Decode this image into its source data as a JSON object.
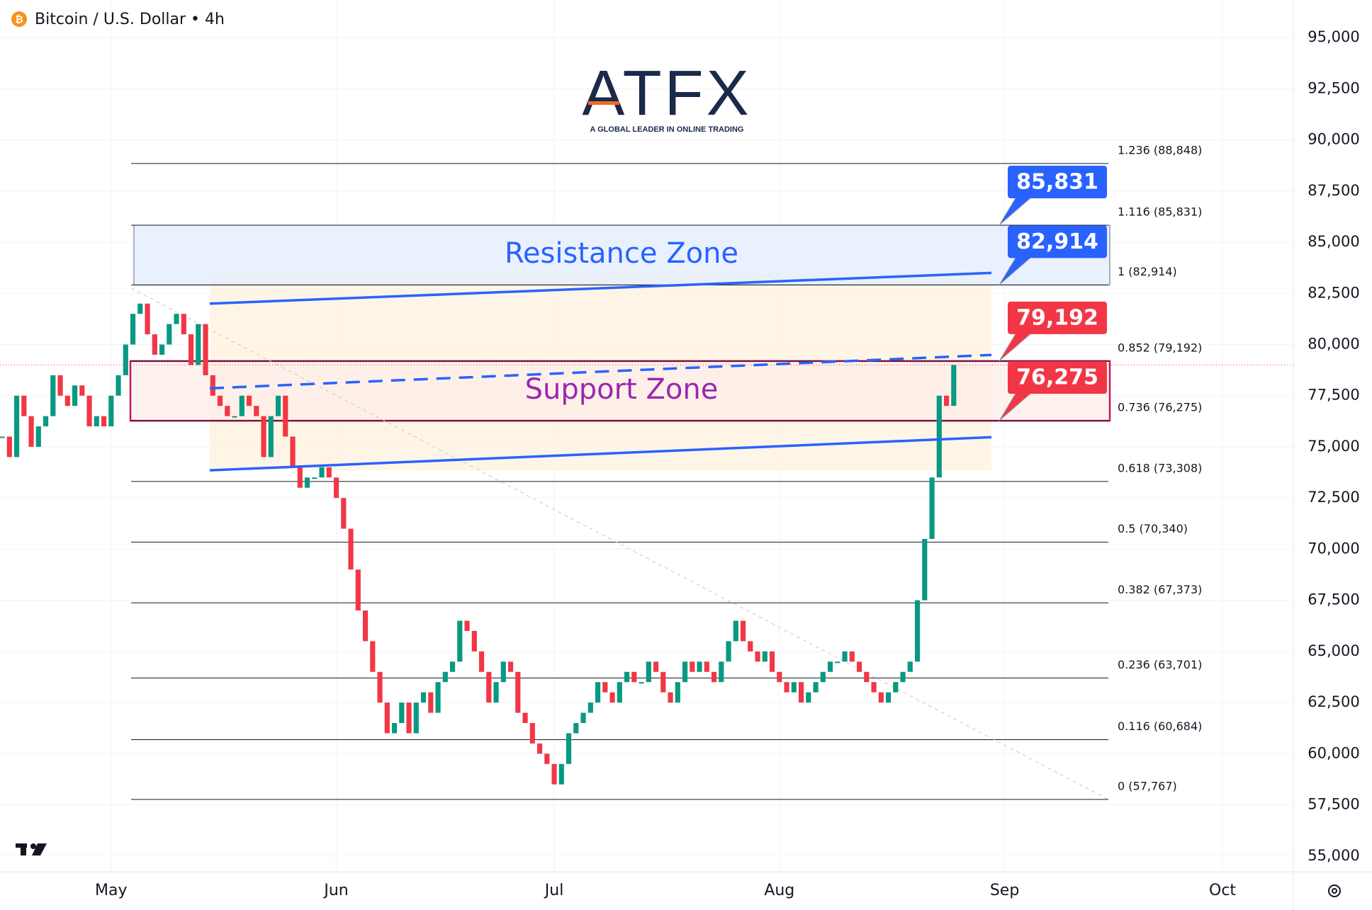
{
  "chart_data": {
    "type": "candlestick",
    "title": "Bitcoin / U.S. Dollar • 4h",
    "logo": {
      "name": "ATFX",
      "tagline": "A GLOBAL LEADER IN ONLINE TRADING"
    },
    "categories": [
      null,
      null,
      null,
      null,
      null,
      null,
      null,
      null,
      null,
      null,
      null,
      null,
      null,
      null,
      null,
      "May",
      null,
      null,
      null,
      null,
      null,
      null,
      null,
      null,
      null,
      null,
      null,
      null,
      null,
      null,
      null,
      null,
      null,
      null,
      null,
      null,
      null,
      null,
      null,
      null,
      null,
      null,
      null,
      null,
      null,
      null,
      "Jun",
      null,
      null,
      null,
      null,
      null,
      null,
      null,
      null,
      null,
      null,
      null,
      null,
      null,
      null,
      null,
      null,
      null,
      null,
      null,
      null,
      null,
      null,
      null,
      null,
      null,
      null,
      null,
      null,
      null,
      "Jul",
      null,
      null,
      null,
      null,
      null,
      null,
      null,
      null,
      null,
      null,
      null,
      null,
      null,
      null,
      null,
      null,
      null,
      null,
      null,
      null,
      null,
      null,
      null,
      null,
      null,
      null,
      null,
      null,
      null,
      null,
      "Aug",
      null,
      null,
      null,
      null,
      null,
      null,
      null,
      null,
      null,
      null,
      null,
      null,
      null,
      null,
      null,
      null,
      null,
      null,
      null,
      null,
      null,
      null,
      null,
      null,
      null,
      null,
      null,
      null,
      null,
      null,
      "Sep",
      null,
      null,
      null,
      null,
      null,
      null,
      null,
      null,
      null,
      null,
      null,
      null,
      null,
      null,
      null,
      null,
      null,
      null,
      null,
      null,
      null,
      null,
      null,
      null,
      null,
      null,
      null,
      null,
      null,
      "Oct",
      null,
      null,
      null,
      null,
      null,
      null,
      null,
      null,
      null,
      null,
      null,
      null,
      null,
      null
    ],
    "values": [
      75500,
      74500,
      77500,
      76500,
      75000,
      76000,
      76500,
      78500,
      77500,
      77000,
      78000,
      77500,
      76000,
      76500,
      76000,
      77500,
      78500,
      80000,
      81500,
      82000,
      80500,
      79500,
      80000,
      81000,
      81500,
      80500,
      79000,
      81000,
      78500,
      77500,
      77000,
      76500,
      76500,
      77500,
      77000,
      76500,
      74500,
      76500,
      77500,
      75500,
      74000,
      73000,
      73500,
      73500,
      74000,
      73500,
      72500,
      71000,
      69000,
      67000,
      65500,
      64000,
      62500,
      61000,
      61500,
      62500,
      61000,
      62500,
      63000,
      62000,
      63500,
      64000,
      64500,
      66500,
      66000,
      65000,
      64000,
      62500,
      63500,
      64500,
      64000,
      62000,
      61500,
      60500,
      60000,
      59500,
      58500,
      59500,
      61000,
      61500,
      62000,
      62500,
      63500,
      63000,
      62500,
      63500,
      64000,
      63500,
      63500,
      64500,
      64000,
      63000,
      62500,
      63500,
      64500,
      64000,
      64500,
      64000,
      63500,
      64500,
      65500,
      66500,
      65500,
      65000,
      64500,
      65000,
      64000,
      63500,
      63000,
      63500,
      62500,
      63000,
      63500,
      64000,
      64500,
      64500,
      65000,
      64500,
      64000,
      63500,
      63000,
      62500,
      63000,
      63500,
      64000,
      64500,
      67500,
      70500,
      73500,
      77500,
      77000,
      79000,
      null,
      null,
      null,
      null,
      null,
      null,
      null,
      null,
      null,
      null,
      null,
      null,
      null,
      null,
      null,
      null,
      null,
      null,
      null,
      null,
      null,
      null,
      null,
      null,
      null,
      null,
      null,
      null,
      null,
      null,
      null,
      null,
      null,
      null,
      null,
      null,
      null,
      null,
      null,
      null,
      null,
      null,
      null,
      null,
      null,
      null,
      null,
      null,
      null,
      null,
      null
    ],
    "up_color": "#089981",
    "down_color": "#f23645",
    "ylim": [
      54230,
      96840
    ],
    "yticks": [
      {
        "value": 55000,
        "label": "55,000"
      },
      {
        "value": 57500,
        "label": "57,500"
      },
      {
        "value": 60000,
        "label": "60,000"
      },
      {
        "value": 62500,
        "label": "62,500"
      },
      {
        "value": 65000,
        "label": "65,000"
      },
      {
        "value": 67500,
        "label": "67,500"
      },
      {
        "value": 70000,
        "label": "70,000"
      },
      {
        "value": 72500,
        "label": "72,500"
      },
      {
        "value": 75000,
        "label": "75,000"
      },
      {
        "value": 77500,
        "label": "77,500"
      },
      {
        "value": 80000,
        "label": "80,000"
      },
      {
        "value": 82500,
        "label": "82,500"
      },
      {
        "value": 85000,
        "label": "85,000"
      },
      {
        "value": 87500,
        "label": "87,500"
      },
      {
        "value": 90000,
        "label": "90,000"
      },
      {
        "value": 92500,
        "label": "92,500"
      },
      {
        "value": 95000,
        "label": "95,000"
      }
    ],
    "grid": true,
    "fib_levels": [
      {
        "label": "1.236 (88,848)",
        "value": 88848
      },
      {
        "label": "1.116 (85,831)",
        "value": 85831
      },
      {
        "label": "1 (82,914)",
        "value": 82914
      },
      {
        "label": "0.852 (79,192)",
        "value": 79192
      },
      {
        "label": "0.736 (76,275)",
        "value": 76275
      },
      {
        "label": "0.618 (73,308)",
        "value": 73308
      },
      {
        "label": "0.5 (70,340)",
        "value": 70340
      },
      {
        "label": "0.382 (67,373)",
        "value": 67373
      },
      {
        "label": "0.236 (63,701)",
        "value": 63701
      },
      {
        "label": "0.116 (60,684)",
        "value": 60684
      },
      {
        "label": "0 (57,767)",
        "value": 57767
      }
    ],
    "zones": [
      {
        "name": "Resistance Zone",
        "from": 82914,
        "to": 85831,
        "fill": "#e3ecfd",
        "border": "#5b6b8c",
        "color": "#2962ff"
      },
      {
        "name": "Support Zone",
        "from": 76275,
        "to": 79192,
        "fill": "#fdeeea",
        "border": "#c2185b",
        "color": "#9c27b0"
      }
    ],
    "channel_lines": [
      {
        "start": 82000,
        "end": 83500,
        "dashed": false
      },
      {
        "start": 77860,
        "end": 79490,
        "dashed": true
      },
      {
        "start": 73850,
        "end": 75470,
        "dashed": false
      }
    ],
    "channel_fill": "#fff3e0",
    "line_color": "#2962ff",
    "price_tags": [
      {
        "value": 85831,
        "label": "85,831",
        "color": "#2962ff"
      },
      {
        "value": 82914,
        "label": "82,914",
        "color": "#2962ff"
      },
      {
        "value": 79192,
        "label": "79,192",
        "color": "#f23645"
      },
      {
        "value": 76275,
        "label": "76,275",
        "color": "#f23645"
      }
    ]
  }
}
